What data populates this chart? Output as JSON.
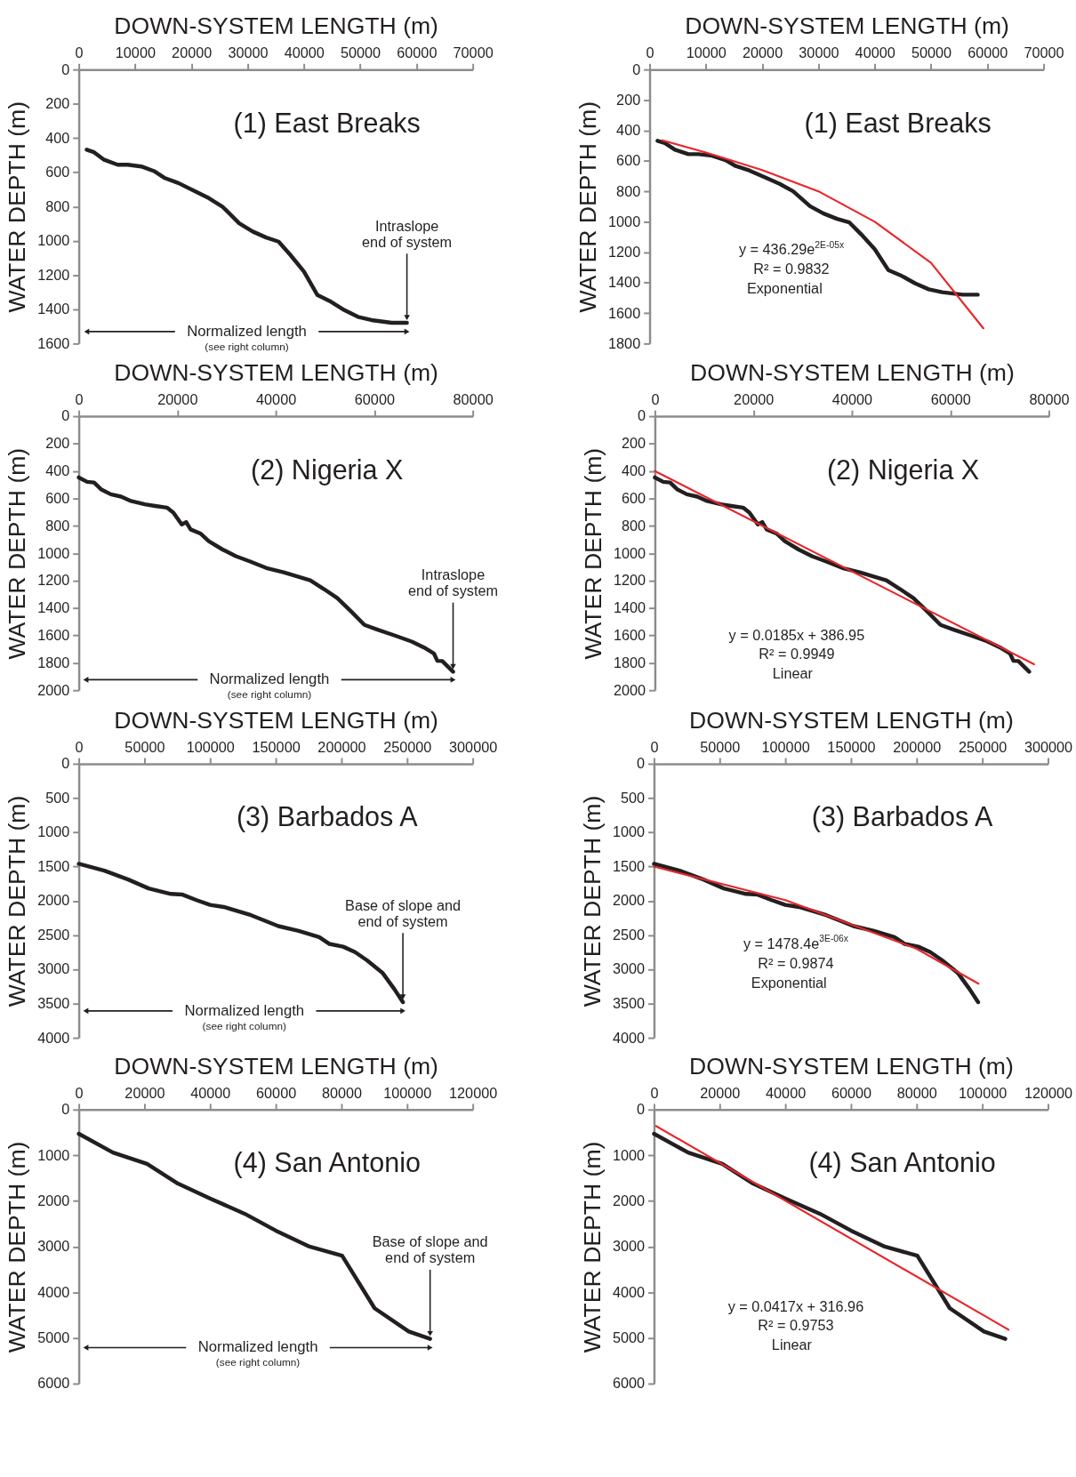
{
  "chart_data": [
    {
      "type": "line",
      "title": "(1) East Breaks",
      "xlabel": "DOWN-SYSTEM LENGTH (m)",
      "ylabel": "WATER DEPTH (m)",
      "xlim": [
        0,
        70000
      ],
      "xticks": [
        0,
        10000,
        20000,
        30000,
        40000,
        50000,
        60000,
        70000
      ],
      "ylim": [
        1600,
        0
      ],
      "yticks": [
        0,
        200,
        400,
        600,
        800,
        1000,
        1200,
        1400,
        1600
      ],
      "series": [
        {
          "color": "#231f20",
          "x": [
            1400,
            2700,
            4500,
            6900,
            8700,
            11100,
            13500,
            15300,
            17700,
            20700,
            23100,
            25500,
            28500,
            30900,
            33300,
            35500,
            37600,
            40000,
            42400,
            44800,
            47200,
            49600,
            52000,
            55600,
            58300
          ],
          "values": [
            468,
            483,
            527,
            556,
            556,
            566,
            595,
            634,
            663,
            712,
            751,
            800,
            898,
            946,
            981,
            1005,
            1083,
            1180,
            1317,
            1356,
            1405,
            1444,
            1463,
            1479,
            1479
          ]
        }
      ],
      "annotations": [
        {
          "text": "Intraslope\nend of system",
          "x": 58300,
          "y": 1479
        },
        "Normalized length",
        "(see right column)"
      ]
    },
    {
      "type": "line",
      "title": "(1) East Breaks",
      "xlabel": "DOWN-SYSTEM LENGTH (m)",
      "ylabel": "WATER DEPTH (m)",
      "xlim": [
        0,
        70000
      ],
      "xticks": [
        0,
        10000,
        20000,
        30000,
        40000,
        50000,
        60000,
        70000
      ],
      "ylim": [
        1800,
        0
      ],
      "yticks": [
        0,
        200,
        400,
        600,
        800,
        1000,
        1200,
        1400,
        1600,
        1800
      ],
      "series": [
        {
          "color": "#231f20",
          "x": [
            1400,
            2700,
            4500,
            6900,
            8700,
            11100,
            13500,
            15300,
            17700,
            20700,
            23100,
            25500,
            28500,
            30900,
            33300,
            35500,
            37600,
            40000,
            42400,
            44800,
            47200,
            49600,
            52000,
            55600,
            58300
          ],
          "values": [
            468,
            483,
            527,
            556,
            556,
            566,
            595,
            634,
            663,
            712,
            751,
            800,
            898,
            946,
            981,
            1005,
            1083,
            1180,
            1317,
            1356,
            1405,
            1444,
            1463,
            1479,
            1479
          ]
        },
        {
          "type": "line",
          "color": "#e8262b",
          "x": [
            2200,
            10000,
            20000,
            30000,
            40000,
            50000,
            59300
          ],
          "values": [
            465,
            545,
            660,
            800,
            1000,
            1270,
            1700
          ]
        }
      ],
      "annotations": [
        "y = 436.29e$^{2E-05x}$",
        "R² = 0.9832",
        "Exponential"
      ]
    },
    {
      "type": "line",
      "title": "(2) Nigeria X",
      "xlabel": "DOWN-SYSTEM LENGTH (m)",
      "ylabel": "WATER DEPTH (m)",
      "xlim": [
        0,
        80000
      ],
      "xticks": [
        0,
        20000,
        40000,
        60000,
        80000
      ],
      "ylim": [
        2000,
        0
      ],
      "yticks": [
        0,
        200,
        400,
        600,
        800,
        1000,
        1200,
        1400,
        1600,
        1800,
        2000
      ],
      "series": [
        {
          "color": "#231f20",
          "x": [
            0,
            1700,
            3100,
            4500,
            6500,
            8600,
            10600,
            13400,
            15500,
            17900,
            19200,
            20900,
            21800,
            22700,
            24700,
            26400,
            29200,
            31900,
            34700,
            38100,
            41600,
            44300,
            47000,
            49800,
            52500,
            55300,
            58000,
            60800,
            64200,
            67600,
            70400,
            72100,
            72800,
            73800,
            76000
          ],
          "values": [
            447,
            479,
            484,
            533,
            570,
            587,
            619,
            643,
            655,
            667,
            704,
            790,
            773,
            826,
            856,
            912,
            973,
            1022,
            1059,
            1108,
            1139,
            1169,
            1198,
            1262,
            1328,
            1425,
            1523,
            1560,
            1601,
            1645,
            1694,
            1731,
            1785,
            1787,
            1865
          ]
        }
      ],
      "annotations": [
        {
          "text": "Intraslope\nend of system",
          "x": 76000,
          "y": 1865
        },
        "Normalized length",
        "(see right column)"
      ]
    },
    {
      "type": "line",
      "title": "(2) Nigeria X",
      "xlabel": "DOWN-SYSTEM LENGTH (m)",
      "ylabel": "WATER DEPTH (m)",
      "xlim": [
        0,
        80000
      ],
      "xticks": [
        0,
        20000,
        40000,
        60000,
        80000
      ],
      "ylim": [
        2000,
        0
      ],
      "yticks": [
        0,
        200,
        400,
        600,
        800,
        1000,
        1200,
        1400,
        1600,
        1800,
        2000
      ],
      "series": [
        {
          "color": "#231f20",
          "x": [
            0,
            1700,
            3100,
            4500,
            6500,
            8600,
            10600,
            13400,
            15500,
            17900,
            19200,
            20900,
            21800,
            22700,
            24700,
            26400,
            29200,
            31900,
            34700,
            38100,
            41600,
            44300,
            47000,
            49800,
            52500,
            55300,
            58000,
            60800,
            64200,
            67600,
            70400,
            72100,
            72800,
            73800,
            76000
          ],
          "values": [
            447,
            479,
            484,
            533,
            570,
            587,
            619,
            643,
            655,
            667,
            704,
            790,
            773,
            826,
            856,
            912,
            973,
            1022,
            1059,
            1108,
            1139,
            1169,
            1198,
            1262,
            1328,
            1425,
            1523,
            1560,
            1601,
            1645,
            1694,
            1731,
            1785,
            1787,
            1865
          ]
        },
        {
          "type": "line",
          "color": "#e8262b",
          "x": [
            0,
            77000
          ],
          "values": [
            400,
            1810
          ]
        }
      ],
      "annotations": [
        "y = 0.0185x + 386.95",
        "R² = 0.9949",
        "Linear"
      ]
    },
    {
      "type": "line",
      "title": "(3) Barbados A",
      "xlabel": "DOWN-SYSTEM LENGTH (m)",
      "ylabel": "WATER DEPTH (m)",
      "xlim": [
        0,
        300000
      ],
      "xticks": [
        0,
        50000,
        100000,
        150000,
        200000,
        250000,
        300000
      ],
      "ylim": [
        4000,
        0
      ],
      "yticks": [
        0,
        500,
        1000,
        1500,
        2000,
        2500,
        3000,
        3500,
        4000
      ],
      "series": [
        {
          "color": "#231f20",
          "x": [
            0,
            19500,
            37700,
            53200,
            70100,
            79000,
            89600,
            100000,
            110400,
            131200,
            152000,
            167500,
            183100,
            190900,
            201300,
            210400,
            219500,
            231200,
            240300,
            246800
          ],
          "values": [
            1460,
            1560,
            1690,
            1820,
            1900,
            1910,
            1990,
            2060,
            2090,
            2210,
            2370,
            2440,
            2530,
            2630,
            2670,
            2750,
            2870,
            3050,
            3290,
            3480
          ]
        }
      ],
      "annotations": [
        {
          "text": "Base of slope and\nend of system",
          "x": 246800,
          "y": 3480
        },
        "Normalized length",
        "(see right column)"
      ]
    },
    {
      "type": "line",
      "title": "(3) Barbados A",
      "xlabel": "DOWN-SYSTEM LENGTH (m)",
      "ylabel": "WATER DEPTH (m)",
      "xlim": [
        0,
        300000
      ],
      "xticks": [
        0,
        50000,
        100000,
        150000,
        200000,
        250000,
        300000
      ],
      "ylim": [
        4000,
        0
      ],
      "yticks": [
        0,
        500,
        1000,
        1500,
        2000,
        2500,
        3000,
        3500,
        4000
      ],
      "series": [
        {
          "color": "#231f20",
          "x": [
            0,
            19500,
            37700,
            53200,
            70100,
            79000,
            89600,
            100000,
            110400,
            131200,
            152000,
            167500,
            183100,
            190900,
            201300,
            210400,
            219500,
            231200,
            240300,
            246800
          ],
          "values": [
            1460,
            1560,
            1690,
            1820,
            1900,
            1910,
            1990,
            2060,
            2090,
            2210,
            2370,
            2440,
            2530,
            2630,
            2670,
            2750,
            2870,
            3050,
            3290,
            3480
          ]
        },
        {
          "type": "line",
          "color": "#e8262b",
          "x": [
            0,
            100000,
            200000,
            247100
          ],
          "values": [
            1500,
            1990,
            2700,
            3210
          ]
        }
      ],
      "annotations": [
        "y = 1478.4e$^{3E-06x}$",
        "R² = 0.9874",
        "Exponential"
      ]
    },
    {
      "type": "line",
      "title": "(4) San Antonio",
      "xlabel": "DOWN-SYSTEM LENGTH (m)",
      "ylabel": "WATER DEPTH (m)",
      "xlim": [
        0,
        120000
      ],
      "xticks": [
        0,
        20000,
        40000,
        60000,
        80000,
        100000,
        120000
      ],
      "ylim": [
        6000,
        0
      ],
      "yticks": [
        0,
        1000,
        2000,
        3000,
        4000,
        5000,
        6000
      ],
      "series": [
        {
          "color": "#231f20",
          "x": [
            0,
            10400,
            20800,
            30200,
            40100,
            50500,
            60000,
            70300,
            80200,
            90100,
            100500,
            107000
          ],
          "values": [
            530,
            940,
            1190,
            1620,
            1950,
            2280,
            2650,
            3000,
            3200,
            4350,
            4860,
            5020
          ]
        }
      ],
      "annotations": [
        {
          "text": "Base of slope and\nend of system",
          "x": 107000,
          "y": 5020
        },
        "Normalized length",
        "(see right column)"
      ]
    },
    {
      "type": "line",
      "title": "(4) San Antonio",
      "xlabel": "DOWN-SYSTEM LENGTH (m)",
      "ylabel": "WATER DEPTH (m)",
      "xlim": [
        0,
        120000
      ],
      "xticks": [
        0,
        20000,
        40000,
        60000,
        80000,
        100000,
        120000
      ],
      "ylim": [
        6000,
        0
      ],
      "yticks": [
        0,
        1000,
        2000,
        3000,
        4000,
        5000,
        6000
      ],
      "series": [
        {
          "color": "#231f20",
          "x": [
            0,
            10400,
            20800,
            30200,
            40100,
            50500,
            60000,
            70300,
            80200,
            90100,
            100500,
            107000
          ],
          "values": [
            530,
            940,
            1190,
            1620,
            1950,
            2280,
            2650,
            3000,
            3200,
            4350,
            4860,
            5020
          ]
        },
        {
          "type": "line",
          "color": "#e8262b",
          "x": [
            600,
            108000
          ],
          "values": [
            360,
            4820
          ]
        }
      ],
      "annotations": [
        "y = 0.0417x + 316.96",
        "R² = 0.9753",
        "Linear"
      ]
    }
  ]
}
